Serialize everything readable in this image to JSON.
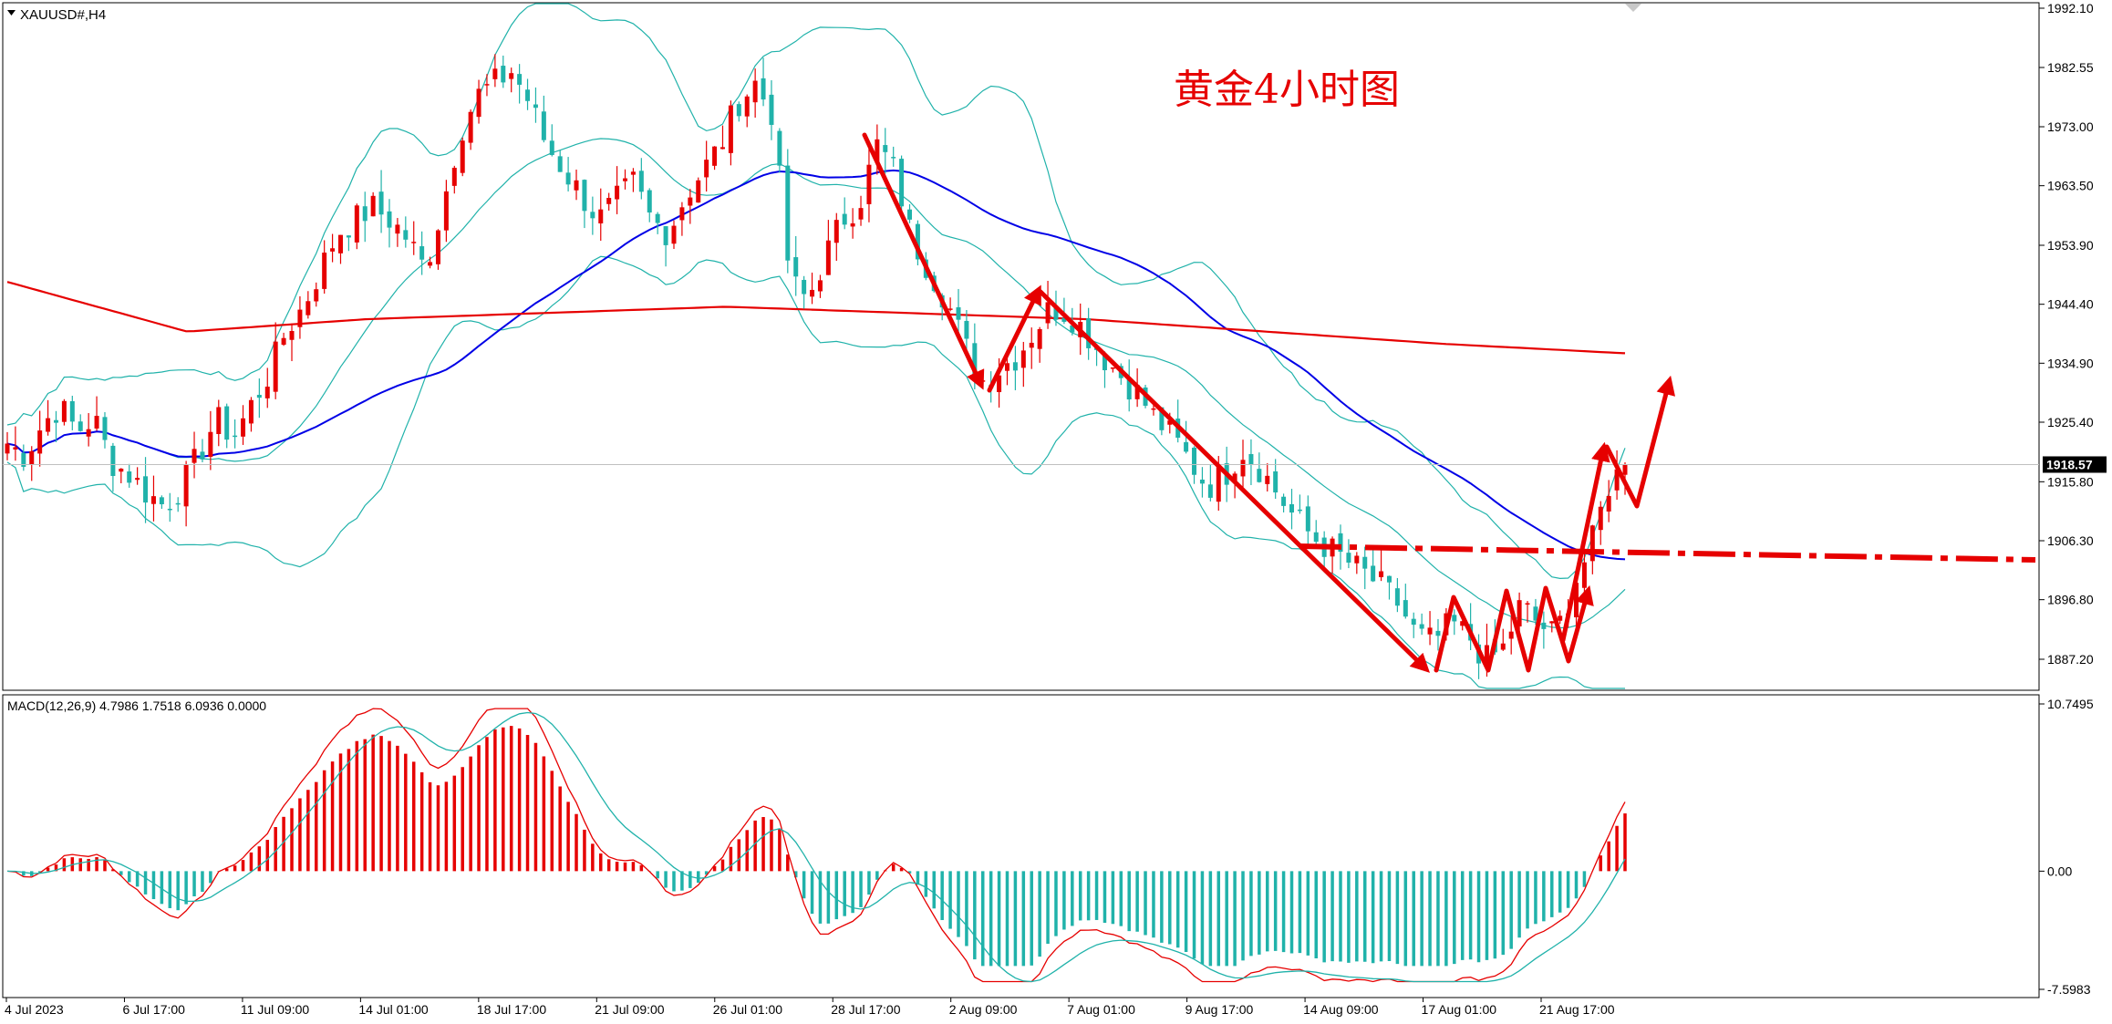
{
  "chart_data": {
    "type": "candlestick",
    "symbol_label": "XAUUSD#,H4",
    "title": "黄金4小时图",
    "price_axis": {
      "ylim": [
        1882.5,
        1992.1
      ],
      "ticks": [
        "1992.10",
        "1982.55",
        "1973.00",
        "1963.50",
        "1953.90",
        "1944.40",
        "1934.90",
        "1925.40",
        "1915.80",
        "1906.30",
        "1896.80",
        "1887.20"
      ],
      "current_price": "1918.57"
    },
    "macd": {
      "label": "MACD(12,26,9) 4.7986 1.7518 6.0936 0.0000",
      "ylim": [
        -7.5983,
        10.7495
      ],
      "ticks": [
        "10.7495",
        "0.00",
        "-7.5983"
      ]
    },
    "x_ticks": [
      "4 Jul 2023",
      "6 Jul 17:00",
      "11 Jul 09:00",
      "14 Jul 01:00",
      "18 Jul 17:00",
      "21 Jul 09:00",
      "26 Jul 01:00",
      "28 Jul 17:00",
      "2 Aug 09:00",
      "7 Aug 01:00",
      "9 Aug 17:00",
      "14 Aug 09:00",
      "17 Aug 01:00",
      "21 Aug 17:00"
    ],
    "close_path": [
      1922,
      1920,
      1925,
      1928,
      1924,
      1926,
      1919,
      1917,
      1914,
      1912,
      1915,
      1920,
      1926,
      1923,
      1928,
      1933,
      1940,
      1944,
      1950,
      1956,
      1958,
      1960,
      1958,
      1955,
      1950,
      1960,
      1972,
      1978,
      1980,
      1982,
      1977,
      1970,
      1966,
      1962,
      1958,
      1961,
      1964,
      1958,
      1956,
      1962,
      1966,
      1970,
      1977,
      1980,
      1975,
      1948,
      1945,
      1952,
      1958,
      1961,
      1970,
      1966,
      1955,
      1950,
      1945,
      1938,
      1932,
      1934,
      1936,
      1940,
      1944,
      1943,
      1940,
      1936,
      1933,
      1930,
      1926,
      1923,
      1919,
      1915,
      1917,
      1921,
      1918,
      1914,
      1910,
      1907,
      1905,
      1903,
      1901,
      1899,
      1896,
      1891,
      1890,
      1893,
      1891,
      1887,
      1889,
      1896,
      1893,
      1891,
      1899,
      1905,
      1915,
      1918.57
    ],
    "series": [
      {
        "name": "MA50",
        "color": "#0000e6"
      },
      {
        "name": "MA200",
        "color": "#e60000"
      },
      {
        "name": "Bollinger",
        "color": "#20b2aa"
      }
    ],
    "colors": {
      "up": "#e60000",
      "down": "#20b2aa",
      "arrow": "#e60000",
      "resistance": "#e60000"
    }
  }
}
